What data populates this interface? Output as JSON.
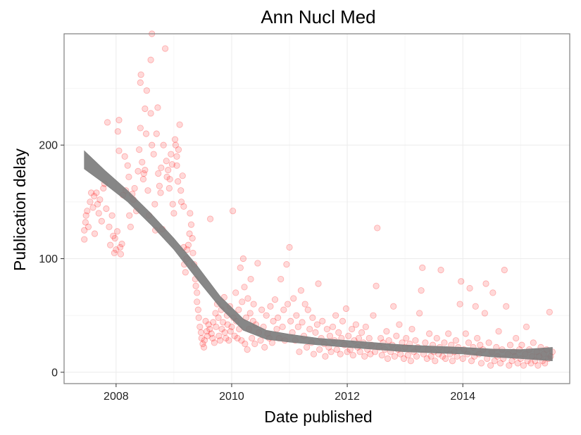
{
  "chart_data": {
    "type": "scatter",
    "title": "Ann Nucl Med",
    "xlabel": "Date published",
    "ylabel": "Publication delay",
    "xlim": [
      2007.1,
      2015.85
    ],
    "ylim": [
      -10,
      298
    ],
    "x_ticks": [
      2008,
      2010,
      2012,
      2014
    ],
    "y_ticks": [
      0,
      100,
      200
    ],
    "grid": true,
    "legend": "none",
    "point_color": "#ff0000",
    "point_opacity": 0.15,
    "smooth_color": "#7a7a7a",
    "points": [
      [
        2007.45,
        117
      ],
      [
        2007.45,
        125
      ],
      [
        2007.47,
        132
      ],
      [
        2007.48,
        138
      ],
      [
        2007.5,
        142
      ],
      [
        2007.52,
        128
      ],
      [
        2007.55,
        150
      ],
      [
        2007.57,
        158
      ],
      [
        2007.6,
        145
      ],
      [
        2007.62,
        155
      ],
      [
        2007.63,
        122
      ],
      [
        2007.66,
        158
      ],
      [
        2007.68,
        148
      ],
      [
        2007.7,
        140
      ],
      [
        2007.72,
        152
      ],
      [
        2007.75,
        133
      ],
      [
        2007.78,
        162
      ],
      [
        2007.8,
        166
      ],
      [
        2007.83,
        144
      ],
      [
        2007.85,
        220
      ],
      [
        2007.88,
        128
      ],
      [
        2007.9,
        112
      ],
      [
        2007.93,
        138
      ],
      [
        2007.95,
        120
      ],
      [
        2007.97,
        105
      ],
      [
        2007.98,
        118
      ],
      [
        2008.0,
        108
      ],
      [
        2008.02,
        124
      ],
      [
        2008.03,
        212
      ],
      [
        2008.05,
        195
      ],
      [
        2008.05,
        222
      ],
      [
        2008.07,
        110
      ],
      [
        2008.08,
        104
      ],
      [
        2008.1,
        113
      ],
      [
        2008.12,
        156
      ],
      [
        2008.15,
        190
      ],
      [
        2008.17,
        160
      ],
      [
        2008.2,
        182
      ],
      [
        2008.22,
        172
      ],
      [
        2008.23,
        138
      ],
      [
        2008.25,
        128
      ],
      [
        2008.28,
        157
      ],
      [
        2008.3,
        152
      ],
      [
        2008.32,
        162
      ],
      [
        2008.35,
        142
      ],
      [
        2008.38,
        177
      ],
      [
        2008.4,
        196
      ],
      [
        2008.42,
        215
      ],
      [
        2008.42,
        255
      ],
      [
        2008.43,
        262
      ],
      [
        2008.45,
        185
      ],
      [
        2008.47,
        170
      ],
      [
        2008.48,
        175
      ],
      [
        2008.5,
        232
      ],
      [
        2008.5,
        178
      ],
      [
        2008.52,
        210
      ],
      [
        2008.53,
        248
      ],
      [
        2008.55,
        160
      ],
      [
        2008.57,
        138
      ],
      [
        2008.6,
        228
      ],
      [
        2008.6,
        275
      ],
      [
        2008.62,
        298
      ],
      [
        2008.62,
        200
      ],
      [
        2008.65,
        192
      ],
      [
        2008.67,
        148
      ],
      [
        2008.68,
        125
      ],
      [
        2008.7,
        210
      ],
      [
        2008.72,
        233
      ],
      [
        2008.73,
        175
      ],
      [
        2008.75,
        164
      ],
      [
        2008.77,
        158
      ],
      [
        2008.78,
        180
      ],
      [
        2008.8,
        126
      ],
      [
        2008.82,
        200
      ],
      [
        2008.85,
        285
      ],
      [
        2008.87,
        186
      ],
      [
        2008.88,
        172
      ],
      [
        2008.9,
        178
      ],
      [
        2008.92,
        162
      ],
      [
        2008.93,
        170
      ],
      [
        2008.95,
        192
      ],
      [
        2008.97,
        183
      ],
      [
        2008.98,
        148
      ],
      [
        2009.0,
        140
      ],
      [
        2009.02,
        205
      ],
      [
        2009.03,
        200
      ],
      [
        2009.05,
        190
      ],
      [
        2009.05,
        182
      ],
      [
        2009.07,
        168
      ],
      [
        2009.08,
        196
      ],
      [
        2009.1,
        218
      ],
      [
        2009.12,
        160
      ],
      [
        2009.13,
        150
      ],
      [
        2009.15,
        173
      ],
      [
        2009.17,
        146
      ],
      [
        2009.17,
        110
      ],
      [
        2009.18,
        95
      ],
      [
        2009.2,
        88
      ],
      [
        2009.22,
        100
      ],
      [
        2009.23,
        108
      ],
      [
        2009.25,
        112
      ],
      [
        2009.27,
        122
      ],
      [
        2009.28,
        140
      ],
      [
        2009.3,
        130
      ],
      [
        2009.32,
        118
      ],
      [
        2009.33,
        105
      ],
      [
        2009.35,
        95
      ],
      [
        2009.37,
        82
      ],
      [
        2009.38,
        76
      ],
      [
        2009.4,
        70
      ],
      [
        2009.4,
        62
      ],
      [
        2009.42,
        55
      ],
      [
        2009.43,
        48
      ],
      [
        2009.45,
        40
      ],
      [
        2009.47,
        35
      ],
      [
        2009.48,
        30
      ],
      [
        2009.5,
        25
      ],
      [
        2009.52,
        22
      ],
      [
        2009.53,
        28
      ],
      [
        2009.55,
        45
      ],
      [
        2009.57,
        36
      ],
      [
        2009.58,
        32
      ],
      [
        2009.6,
        42
      ],
      [
        2009.62,
        38
      ],
      [
        2009.63,
        135
      ],
      [
        2009.65,
        34
      ],
      [
        2009.67,
        30
      ],
      [
        2009.68,
        44
      ],
      [
        2009.7,
        26
      ],
      [
        2009.72,
        52
      ],
      [
        2009.73,
        40
      ],
      [
        2009.75,
        60
      ],
      [
        2009.77,
        48
      ],
      [
        2009.78,
        32
      ],
      [
        2009.8,
        28
      ],
      [
        2009.82,
        55
      ],
      [
        2009.83,
        38
      ],
      [
        2009.85,
        44
      ],
      [
        2009.87,
        66
      ],
      [
        2009.88,
        35
      ],
      [
        2009.9,
        30
      ],
      [
        2009.92,
        50
      ],
      [
        2009.93,
        42
      ],
      [
        2009.95,
        28
      ],
      [
        2009.97,
        58
      ],
      [
        2009.98,
        36
      ],
      [
        2010.0,
        40
      ],
      [
        2010.02,
        142
      ],
      [
        2010.03,
        48
      ],
      [
        2010.05,
        32
      ],
      [
        2010.07,
        70
      ],
      [
        2010.08,
        45
      ],
      [
        2010.1,
        30
      ],
      [
        2010.12,
        55
      ],
      [
        2010.13,
        38
      ],
      [
        2010.15,
        92
      ],
      [
        2010.17,
        28
      ],
      [
        2010.18,
        62
      ],
      [
        2010.2,
        100
      ],
      [
        2010.22,
        75
      ],
      [
        2010.23,
        25
      ],
      [
        2010.25,
        48
      ],
      [
        2010.27,
        20
      ],
      [
        2010.28,
        65
      ],
      [
        2010.3,
        38
      ],
      [
        2010.32,
        52
      ],
      [
        2010.33,
        82
      ],
      [
        2010.35,
        30
      ],
      [
        2010.37,
        45
      ],
      [
        2010.38,
        60
      ],
      [
        2010.4,
        25
      ],
      [
        2010.42,
        42
      ],
      [
        2010.45,
        96
      ],
      [
        2010.47,
        35
      ],
      [
        2010.5,
        28
      ],
      [
        2010.52,
        55
      ],
      [
        2010.55,
        40
      ],
      [
        2010.57,
        22
      ],
      [
        2010.6,
        50
      ],
      [
        2010.62,
        34
      ],
      [
        2010.65,
        30
      ],
      [
        2010.67,
        58
      ],
      [
        2010.7,
        26
      ],
      [
        2010.72,
        45
      ],
      [
        2010.75,
        64
      ],
      [
        2010.78,
        38
      ],
      [
        2010.8,
        48
      ],
      [
        2010.82,
        30
      ],
      [
        2010.85,
        82
      ],
      [
        2010.88,
        40
      ],
      [
        2010.9,
        55
      ],
      [
        2010.92,
        28
      ],
      [
        2010.95,
        95
      ],
      [
        2010.97,
        60
      ],
      [
        2011.0,
        110
      ],
      [
        2011.02,
        45
      ],
      [
        2011.05,
        35
      ],
      [
        2011.07,
        65
      ],
      [
        2011.1,
        28
      ],
      [
        2011.12,
        50
      ],
      [
        2011.15,
        40
      ],
      [
        2011.17,
        18
      ],
      [
        2011.2,
        72
      ],
      [
        2011.22,
        44
      ],
      [
        2011.25,
        32
      ],
      [
        2011.27,
        60
      ],
      [
        2011.3,
        22
      ],
      [
        2011.32,
        55
      ],
      [
        2011.35,
        38
      ],
      [
        2011.38,
        26
      ],
      [
        2011.4,
        48
      ],
      [
        2011.42,
        16
      ],
      [
        2011.45,
        35
      ],
      [
        2011.48,
        42
      ],
      [
        2011.5,
        78
      ],
      [
        2011.52,
        20
      ],
      [
        2011.55,
        30
      ],
      [
        2011.57,
        45
      ],
      [
        2011.6,
        25
      ],
      [
        2011.62,
        14
      ],
      [
        2011.65,
        38
      ],
      [
        2011.68,
        22
      ],
      [
        2011.7,
        32
      ],
      [
        2011.72,
        18
      ],
      [
        2011.75,
        40
      ],
      [
        2011.78,
        28
      ],
      [
        2011.8,
        50
      ],
      [
        2011.82,
        20
      ],
      [
        2011.85,
        35
      ],
      [
        2011.88,
        16
      ],
      [
        2011.9,
        30
      ],
      [
        2011.92,
        45
      ],
      [
        2011.95,
        24
      ],
      [
        2011.98,
        56
      ],
      [
        2012.0,
        18
      ],
      [
        2012.02,
        32
      ],
      [
        2012.05,
        20
      ],
      [
        2012.08,
        38
      ],
      [
        2012.1,
        15
      ],
      [
        2012.12,
        28
      ],
      [
        2012.15,
        42
      ],
      [
        2012.18,
        22
      ],
      [
        2012.2,
        30
      ],
      [
        2012.22,
        18
      ],
      [
        2012.25,
        35
      ],
      [
        2012.28,
        26
      ],
      [
        2012.3,
        14
      ],
      [
        2012.32,
        40
      ],
      [
        2012.35,
        20
      ],
      [
        2012.38,
        30
      ],
      [
        2012.4,
        16
      ],
      [
        2012.42,
        24
      ],
      [
        2012.45,
        50
      ],
      [
        2012.48,
        18
      ],
      [
        2012.5,
        76
      ],
      [
        2012.52,
        127
      ],
      [
        2012.55,
        22
      ],
      [
        2012.58,
        30
      ],
      [
        2012.6,
        15
      ],
      [
        2012.62,
        26
      ],
      [
        2012.65,
        20
      ],
      [
        2012.68,
        36
      ],
      [
        2012.7,
        12
      ],
      [
        2012.72,
        28
      ],
      [
        2012.75,
        18
      ],
      [
        2012.78,
        24
      ],
      [
        2012.8,
        58
      ],
      [
        2012.82,
        14
      ],
      [
        2012.85,
        32
      ],
      [
        2012.88,
        20
      ],
      [
        2012.9,
        42
      ],
      [
        2012.92,
        16
      ],
      [
        2012.95,
        26
      ],
      [
        2012.98,
        12
      ],
      [
        2013.0,
        22
      ],
      [
        2013.02,
        30
      ],
      [
        2013.05,
        15
      ],
      [
        2013.08,
        25
      ],
      [
        2013.1,
        10
      ],
      [
        2013.12,
        38
      ],
      [
        2013.15,
        18
      ],
      [
        2013.18,
        28
      ],
      [
        2013.2,
        14
      ],
      [
        2013.22,
        22
      ],
      [
        2013.25,
        52
      ],
      [
        2013.28,
        72
      ],
      [
        2013.3,
        92
      ],
      [
        2013.32,
        16
      ],
      [
        2013.35,
        26
      ],
      [
        2013.38,
        12
      ],
      [
        2013.4,
        20
      ],
      [
        2013.42,
        34
      ],
      [
        2013.45,
        14
      ],
      [
        2013.48,
        24
      ],
      [
        2013.5,
        18
      ],
      [
        2013.52,
        10
      ],
      [
        2013.55,
        30
      ],
      [
        2013.58,
        16
      ],
      [
        2013.6,
        22
      ],
      [
        2013.62,
        90
      ],
      [
        2013.65,
        14
      ],
      [
        2013.68,
        26
      ],
      [
        2013.7,
        12
      ],
      [
        2013.72,
        20
      ],
      [
        2013.75,
        34
      ],
      [
        2013.78,
        16
      ],
      [
        2013.8,
        24
      ],
      [
        2013.82,
        10
      ],
      [
        2013.85,
        18
      ],
      [
        2013.88,
        28
      ],
      [
        2013.9,
        14
      ],
      [
        2013.92,
        22
      ],
      [
        2013.95,
        60
      ],
      [
        2013.97,
        80
      ],
      [
        2014.0,
        12
      ],
      [
        2014.02,
        20
      ],
      [
        2014.05,
        34
      ],
      [
        2014.08,
        16
      ],
      [
        2014.1,
        26
      ],
      [
        2014.12,
        74
      ],
      [
        2014.15,
        10
      ],
      [
        2014.18,
        22
      ],
      [
        2014.2,
        14
      ],
      [
        2014.22,
        58
      ],
      [
        2014.25,
        30
      ],
      [
        2014.28,
        16
      ],
      [
        2014.3,
        24
      ],
      [
        2014.32,
        8
      ],
      [
        2014.35,
        20
      ],
      [
        2014.38,
        52
      ],
      [
        2014.4,
        78
      ],
      [
        2014.42,
        12
      ],
      [
        2014.45,
        26
      ],
      [
        2014.48,
        6
      ],
      [
        2014.5,
        18
      ],
      [
        2014.52,
        70
      ],
      [
        2014.55,
        10
      ],
      [
        2014.58,
        22
      ],
      [
        2014.6,
        14
      ],
      [
        2014.62,
        36
      ],
      [
        2014.65,
        8
      ],
      [
        2014.68,
        20
      ],
      [
        2014.7,
        12
      ],
      [
        2014.72,
        90
      ],
      [
        2014.75,
        58
      ],
      [
        2014.78,
        16
      ],
      [
        2014.8,
        6
      ],
      [
        2014.82,
        24
      ],
      [
        2014.85,
        10
      ],
      [
        2014.88,
        18
      ],
      [
        2014.9,
        14
      ],
      [
        2014.92,
        30
      ],
      [
        2014.95,
        8
      ],
      [
        2014.98,
        20
      ],
      [
        2015.0,
        12
      ],
      [
        2015.02,
        24
      ],
      [
        2015.05,
        6
      ],
      [
        2015.08,
        16
      ],
      [
        2015.1,
        40
      ],
      [
        2015.12,
        10
      ],
      [
        2015.15,
        20
      ],
      [
        2015.18,
        8
      ],
      [
        2015.2,
        14
      ],
      [
        2015.22,
        26
      ],
      [
        2015.25,
        10
      ],
      [
        2015.28,
        18
      ],
      [
        2015.3,
        6
      ],
      [
        2015.32,
        14
      ],
      [
        2015.35,
        22
      ],
      [
        2015.38,
        10
      ],
      [
        2015.4,
        16
      ],
      [
        2015.42,
        8
      ],
      [
        2015.45,
        20
      ],
      [
        2015.48,
        12
      ],
      [
        2015.5,
        53
      ],
      [
        2015.52,
        14
      ],
      [
        2015.55,
        18
      ]
    ],
    "smooth": {
      "x": [
        2007.45,
        2007.8,
        2008.2,
        2008.6,
        2009.0,
        2009.4,
        2009.8,
        2010.2,
        2010.6,
        2011.0,
        2011.5,
        2012.0,
        2012.5,
        2013.0,
        2013.5,
        2014.0,
        2014.5,
        2015.0,
        2015.55
      ],
      "y": [
        187,
        172,
        155,
        135,
        113,
        88,
        62,
        42,
        33,
        30,
        27,
        25,
        23,
        21,
        20,
        19,
        17,
        16,
        16
      ],
      "band": [
        8,
        6,
        5,
        5,
        5,
        6,
        5,
        5,
        4,
        3.5,
        3,
        3,
        3,
        3,
        3,
        3,
        3.5,
        4,
        6
      ]
    }
  }
}
